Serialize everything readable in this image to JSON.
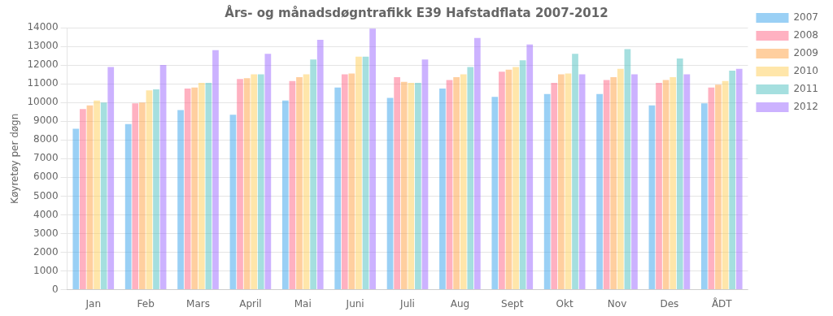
{
  "chart_data": {
    "type": "bar",
    "title": "Års- og månadsdøgntrafikk E39 Hafstadflata 2007-2012",
    "y_label": "Køyretøy per døgn",
    "categories": [
      "Jan",
      "Feb",
      "Mars",
      "April",
      "Mai",
      "Juni",
      "Juli",
      "Aug",
      "Sept",
      "Okt",
      "Nov",
      "Des",
      "ÅDT"
    ],
    "series": [
      {
        "name": "2007",
        "values": [
          8600,
          8850,
          9600,
          9350,
          10100,
          10800,
          10250,
          10750,
          10300,
          10450,
          10450,
          9850,
          9950
        ]
      },
      {
        "name": "2008",
        "values": [
          9650,
          9950,
          10750,
          11250,
          11150,
          11500,
          11350,
          11200,
          11650,
          11050,
          11200,
          11050,
          10800
        ]
      },
      {
        "name": "2009",
        "values": [
          9850,
          10000,
          10800,
          11300,
          11350,
          11550,
          11100,
          11350,
          11750,
          11500,
          11350,
          11200,
          10950
        ]
      },
      {
        "name": "2010",
        "values": [
          10100,
          10650,
          11050,
          11500,
          11500,
          12450,
          11050,
          11500,
          11900,
          11550,
          11800,
          11350,
          11150
        ]
      },
      {
        "name": "2011",
        "values": [
          10000,
          10700,
          11050,
          11500,
          12300,
          12450,
          11050,
          11900,
          12250,
          12600,
          12850,
          12350,
          11700
        ]
      },
      {
        "name": "2012",
        "values": [
          11900,
          12000,
          12800,
          12600,
          13350,
          13950,
          12300,
          13450,
          13100,
          11500,
          11500,
          11500,
          11800
        ]
      }
    ],
    "ylim": [
      0,
      14000
    ],
    "yticks": [
      0,
      1000,
      2000,
      3000,
      4000,
      5000,
      6000,
      7000,
      8000,
      9000,
      10000,
      11000,
      12000,
      13000,
      14000
    ],
    "grid": true,
    "legend": "right"
  }
}
